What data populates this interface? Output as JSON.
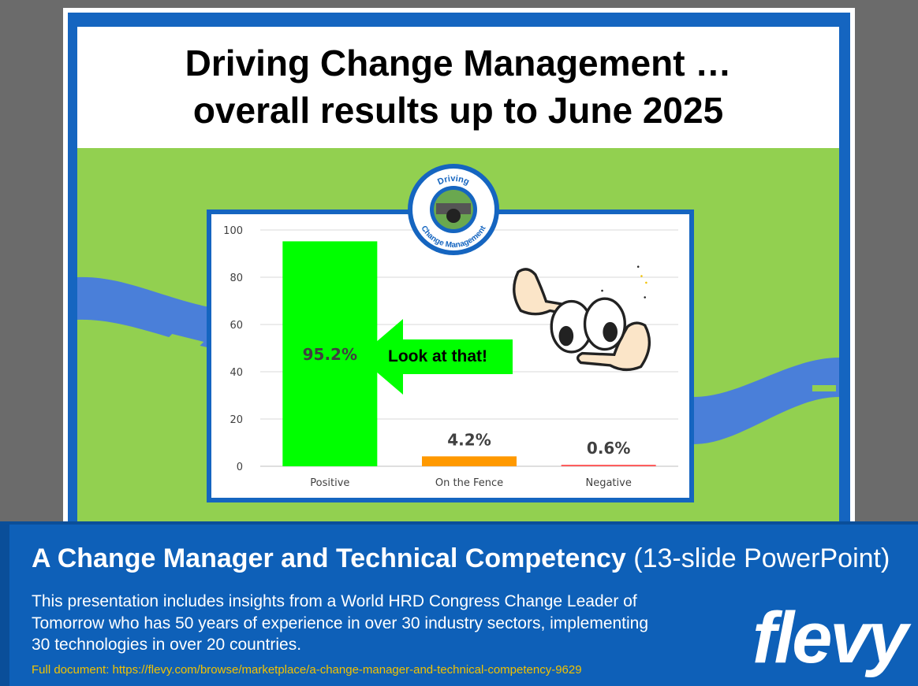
{
  "slide": {
    "title": "Driving Change Management …\noverall results up to June 2025",
    "callout": "Look at that!",
    "logo": {
      "top_text": "Driving",
      "bottom_text": "Change Management"
    }
  },
  "chart_data": {
    "type": "bar",
    "categories": [
      "Positive",
      "On the Fence",
      "Negative"
    ],
    "values": [
      95.2,
      4.2,
      0.6
    ],
    "data_labels": [
      "95.2%",
      "4.2%",
      "0.6%"
    ],
    "colors": [
      "#00ff00",
      "#ff9900",
      "#ff4d4d"
    ],
    "ylim": [
      0,
      100
    ],
    "yticks": [
      0,
      20,
      40,
      60,
      80,
      100
    ],
    "grid": true,
    "title": "",
    "xlabel": "",
    "ylabel": ""
  },
  "banner": {
    "title_bold": "A Change Manager and Technical Competency",
    "title_sub": "(13-slide PowerPoint)",
    "description": "This presentation includes insights from a World HRD Congress Change Leader of Tomorrow who has 50 years of experience in over 30 industry sectors, implementing 30 technologies in over 20 countries.",
    "url": "Full document: https://flevy.com/browse/marketplace/a-change-manager-and-technical-competency-9629",
    "brand": "flevy"
  },
  "colors": {
    "slide_blue": "#1565c0",
    "slide_green": "#92d050",
    "banner_blue": "#0e60b8",
    "url_yellow": "#f2c200"
  }
}
